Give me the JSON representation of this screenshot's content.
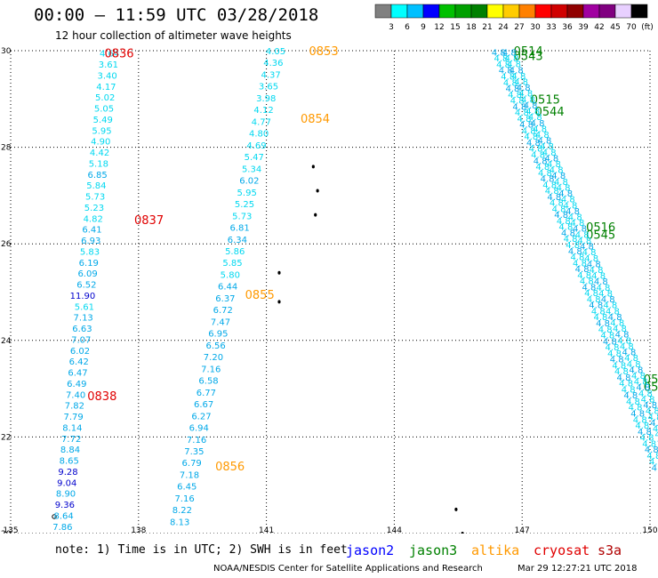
{
  "header": {
    "title": "00:00 – 11:59 UTC 03/28/2018",
    "subtitle": "12 hour collection of altimeter wave heights"
  },
  "colorbar": {
    "colors": [
      "#808080",
      "#00ffff",
      "#00c0ff",
      "#0000ff",
      "#00c000",
      "#00a000",
      "#008000",
      "#ffff00",
      "#ffcc00",
      "#ff8000",
      "#ff0000",
      "#d00000",
      "#900000",
      "#a000a0",
      "#800080",
      "#e8d0ff",
      "#000000"
    ],
    "labels": [
      "3",
      "6",
      "9",
      "12",
      "15",
      "18",
      "21",
      "24",
      "27",
      "30",
      "33",
      "36",
      "39",
      "42",
      "45",
      "70",
      "(ft)"
    ]
  },
  "map": {
    "lon_ticks": [
      "135",
      "138",
      "141",
      "144",
      "147",
      "150"
    ],
    "lat_ticks": [
      "20",
      "22",
      "24",
      "26",
      "28",
      "30"
    ],
    "lon_range": [
      135,
      150
    ],
    "lat_range": [
      20,
      30
    ],
    "grid": "dotted"
  },
  "tracks": [
    {
      "satellite": "cryosat",
      "color": "#e00000",
      "time_labels": [
        {
          "text": "0836",
          "lon": 137.2,
          "lat": 29.95
        },
        {
          "text": "0837",
          "lon": 137.9,
          "lat": 26.5
        },
        {
          "text": "0838",
          "lon": 136.8,
          "lat": 22.85
        }
      ],
      "values": [
        "4.64",
        "3.61",
        "3.40",
        "4.17",
        "5.02",
        "5.05",
        "5.49",
        "5.95",
        "4.90",
        "4.42",
        "5.18",
        "6.85",
        "5.84",
        "5.73",
        "5.23",
        "4.82",
        "6.41",
        "6.93",
        "5.83",
        "6.19",
        "6.09",
        "6.52",
        "11.90",
        "5.61",
        "7.13",
        "6.63",
        "7.07",
        "6.02",
        "6.42",
        "6.47",
        "6.49",
        "7.40",
        "7.82",
        "7.79",
        "8.14",
        "7.72",
        "8.84",
        "8.65",
        "9.28",
        "9.04",
        "8.90",
        "9.36",
        "8.64",
        "7.86"
      ]
    },
    {
      "satellite": "altika",
      "color": "#ff9900",
      "time_labels": [
        {
          "text": "0853",
          "lon": 142.0,
          "lat": 30.0
        },
        {
          "text": "0854",
          "lon": 141.8,
          "lat": 28.6
        },
        {
          "text": "0855",
          "lon": 140.5,
          "lat": 24.95
        },
        {
          "text": "0856",
          "lon": 139.8,
          "lat": 21.4
        }
      ],
      "values": [
        "4.05",
        "4.36",
        "4.37",
        "3.65",
        "3.98",
        "4.12",
        "4.77",
        "4.80",
        "4.69",
        "5.47",
        "5.34",
        "6.02",
        "5.95",
        "5.25",
        "5.73",
        "6.81",
        "6.34",
        "5.86",
        "5.85",
        "5.80",
        "6.44",
        "6.37",
        "6.72",
        "7.47",
        "6.95",
        "6.56",
        "7.20",
        "7.16",
        "6.58",
        "6.77",
        "6.67",
        "6.27",
        "6.94",
        "7.16",
        "7.35",
        "6.79",
        "7.18",
        "6.45",
        "7.16",
        "8.22",
        "8.13"
      ]
    },
    {
      "satellite": "jason3",
      "color": "#008000",
      "time_labels": [
        {
          "text": "0514",
          "lon": 146.8,
          "lat": 30.0
        },
        {
          "text": "0543",
          "lon": 146.8,
          "lat": 29.9
        },
        {
          "text": "0515",
          "lon": 147.2,
          "lat": 29.0
        },
        {
          "text": "0544",
          "lon": 147.3,
          "lat": 28.75
        },
        {
          "text": "0516",
          "lon": 148.5,
          "lat": 26.35
        },
        {
          "text": "0545",
          "lon": 148.5,
          "lat": 26.2
        },
        {
          "text": "05",
          "lon": 149.85,
          "lat": 23.2
        },
        {
          "text": "05",
          "lon": 149.85,
          "lat": 23.05
        }
      ]
    }
  ],
  "islands": [
    {
      "lon": 142.1,
      "lat": 27.6
    },
    {
      "lon": 142.2,
      "lat": 27.1
    },
    {
      "lon": 142.15,
      "lat": 26.6
    },
    {
      "lon": 141.3,
      "lat": 25.4
    },
    {
      "lon": 141.3,
      "lat": 24.8
    },
    {
      "lon": 145.45,
      "lat": 20.5
    },
    {
      "lon": 145.6,
      "lat": 20.0
    }
  ],
  "legend": {
    "note": "note: 1) Time is in UTC; 2) SWH is in feet",
    "satellites": [
      {
        "name": "jason2",
        "color": "#0000ff"
      },
      {
        "name": "jason3",
        "color": "#008000"
      },
      {
        "name": "altika",
        "color": "#ff9900"
      },
      {
        "name": "cryosat",
        "color": "#e00000"
      },
      {
        "name": "s3a",
        "color": "#b00000"
      }
    ]
  },
  "footer": {
    "credit": "NOAA/NESDIS Center for Satellite Applications and Research",
    "timestamp": "Mar 29 12:27:21 UTC 2018"
  }
}
